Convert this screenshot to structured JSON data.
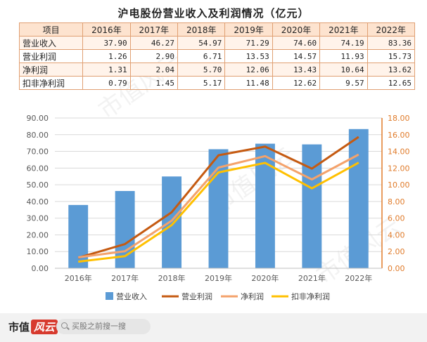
{
  "title": "沪电股份营业收入及利润情况（亿元）",
  "table": {
    "header_label": "项目",
    "years": [
      "2016年",
      "2017年",
      "2018年",
      "2019年",
      "2020年",
      "2021年",
      "2022年"
    ],
    "rows": [
      {
        "label": "营业收入",
        "values": [
          "37.90",
          "46.27",
          "54.97",
          "71.29",
          "74.60",
          "74.19",
          "83.36"
        ]
      },
      {
        "label": "营业利润",
        "values": [
          "1.26",
          "2.90",
          "6.71",
          "13.53",
          "14.57",
          "11.93",
          "15.73"
        ]
      },
      {
        "label": "净利润",
        "values": [
          "1.31",
          "2.04",
          "5.70",
          "12.06",
          "13.43",
          "10.64",
          "13.62"
        ]
      },
      {
        "label": "扣非净利润",
        "values": [
          "0.79",
          "1.45",
          "5.17",
          "11.48",
          "12.62",
          "9.57",
          "12.65"
        ]
      }
    ]
  },
  "chart_data": {
    "type": "bar",
    "categories": [
      "2016年",
      "2017年",
      "2018年",
      "2019年",
      "2020年",
      "2021年",
      "2022年"
    ],
    "bar_series": {
      "name": "营业收入",
      "values": [
        37.9,
        46.27,
        54.97,
        71.29,
        74.6,
        74.19,
        83.36
      ],
      "color": "#5b9bd5"
    },
    "line_series": [
      {
        "name": "营业利润",
        "values": [
          1.26,
          2.9,
          6.71,
          13.53,
          14.57,
          11.93,
          15.73
        ],
        "color": "#c55a11"
      },
      {
        "name": "净利润",
        "values": [
          1.31,
          2.04,
          5.7,
          12.06,
          13.43,
          10.64,
          13.62
        ],
        "color": "#f4a26b"
      },
      {
        "name": "扣非净利润",
        "values": [
          0.79,
          1.45,
          5.17,
          11.48,
          12.62,
          9.57,
          12.65
        ],
        "color": "#ffc000"
      }
    ],
    "left_axis": {
      "ylim": [
        0,
        90
      ],
      "ticks": [
        "0.00",
        "10.00",
        "20.00",
        "30.00",
        "40.00",
        "50.00",
        "60.00",
        "70.00",
        "80.00",
        "90.00"
      ]
    },
    "right_axis": {
      "ylim": [
        0,
        18
      ],
      "ticks": [
        "0.00",
        "2.00",
        "4.00",
        "6.00",
        "8.00",
        "10.00",
        "12.00",
        "14.00",
        "16.00",
        "18.00"
      ],
      "color": "#e07b2a"
    },
    "grid": true,
    "legend_position": "bottom"
  },
  "footer": {
    "brand_text": "市值",
    "brand_mark": "风云",
    "search_placeholder": "买股之前搜一搜"
  },
  "watermark": "市值风云"
}
